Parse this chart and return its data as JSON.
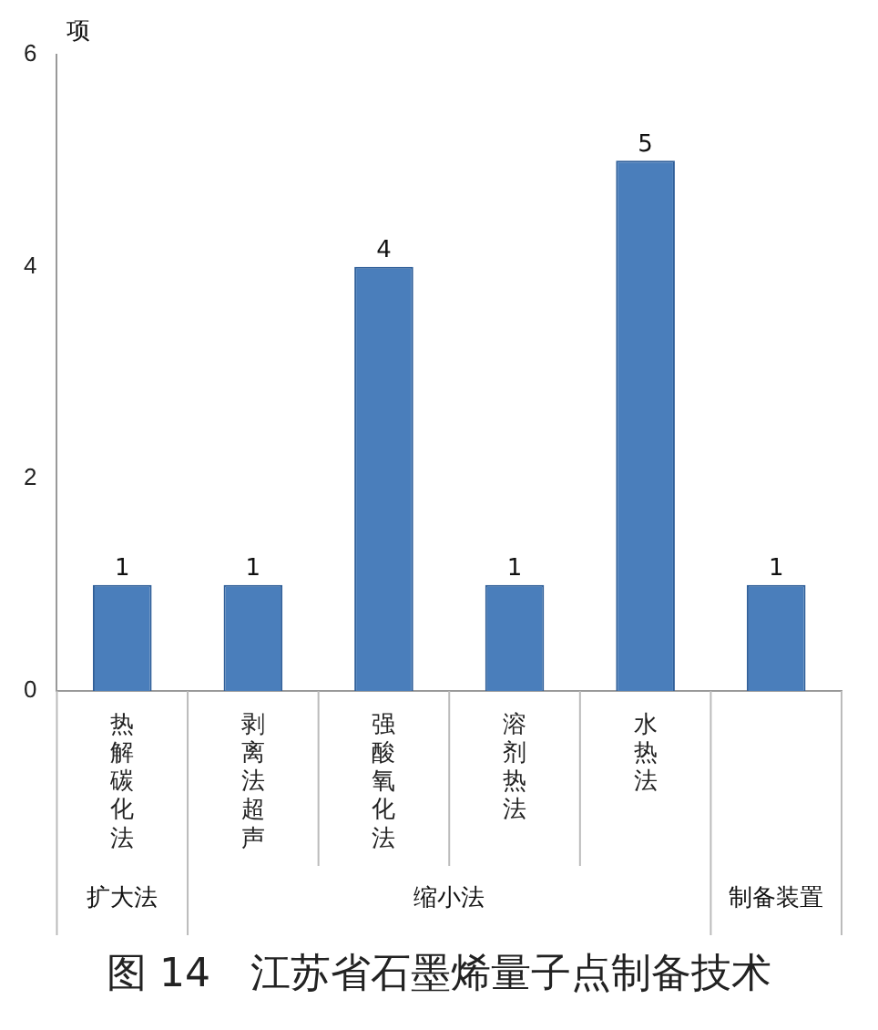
{
  "chart_data": {
    "type": "bar",
    "title": "图 14　江苏省石墨烯量子点制备技术",
    "ylabel": "项",
    "categories": [
      "热解碳化法",
      "剥离法超声",
      "强酸氧化法",
      "溶剂热法",
      "水热法",
      null
    ],
    "values": [
      1,
      1,
      4,
      1,
      5,
      1
    ],
    "color": "#4a7ebb",
    "ylim": [
      0,
      6
    ],
    "yticks": [
      0,
      2,
      4,
      6
    ],
    "grid": false,
    "legend": false,
    "data_labels": true,
    "annotations": [
      "扩大法",
      "缩小法",
      "制备装置"
    ]
  }
}
